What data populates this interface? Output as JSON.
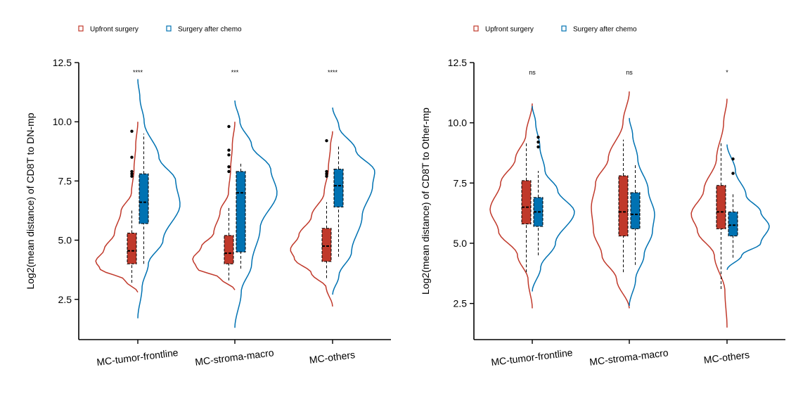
{
  "colors": {
    "upfront": "#c0392b",
    "chemo": "#0072b2",
    "axis": "#000000"
  },
  "chart_data": [
    {
      "type": "violin",
      "ylabel": "Log2(mean distance) of CD8T to DN-mp",
      "xlabel": "",
      "ylim": [
        0.8,
        12.5
      ],
      "yticks": [
        "2.5",
        "5.0",
        "7.5",
        "10.0",
        "12.5"
      ],
      "legend": {
        "placement": "top-left",
        "entries": [
          "Upfront surgery",
          "Surgery after chemo"
        ]
      },
      "categories": [
        "MC-tumor-frontline",
        "MC-stroma-macro",
        "MC-others"
      ],
      "significance": [
        "****",
        "***",
        "****"
      ],
      "series": [
        {
          "name": "Upfront surgery",
          "groups": [
            {
              "q1": 4.0,
              "median": 4.55,
              "q3": 5.3,
              "whislo": 3.2,
              "whishi": 6.3,
              "outliers": [
                7.7,
                7.8,
                7.9,
                8.5,
                9.6
              ],
              "violin": {
                "min": 2.8,
                "max": 10.0,
                "width": [
                  [
                    2.8,
                    0.0
                  ],
                  [
                    3.3,
                    0.3
                  ],
                  [
                    3.8,
                    0.9
                  ],
                  [
                    4.1,
                    1.0
                  ],
                  [
                    4.6,
                    0.8
                  ],
                  [
                    5.3,
                    0.55
                  ],
                  [
                    6.2,
                    0.4
                  ],
                  [
                    7.0,
                    0.15
                  ],
                  [
                    8.0,
                    0.09
                  ],
                  [
                    9.0,
                    0.05
                  ],
                  [
                    10.0,
                    0.0
                  ]
                ]
              }
            },
            {
              "q1": 4.0,
              "median": 4.45,
              "q3": 5.2,
              "whislo": 3.3,
              "whishi": 6.4,
              "outliers": [
                7.9,
                8.1,
                8.6,
                8.8,
                9.8
              ],
              "violin": {
                "min": 2.9,
                "max": 10.0,
                "width": [
                  [
                    2.9,
                    0.0
                  ],
                  [
                    3.4,
                    0.35
                  ],
                  [
                    3.8,
                    0.9
                  ],
                  [
                    4.2,
                    1.0
                  ],
                  [
                    4.7,
                    0.8
                  ],
                  [
                    5.3,
                    0.5
                  ],
                  [
                    6.2,
                    0.35
                  ],
                  [
                    7.0,
                    0.15
                  ],
                  [
                    8.0,
                    0.1
                  ],
                  [
                    9.0,
                    0.06
                  ],
                  [
                    10.0,
                    0.0
                  ]
                ]
              }
            },
            {
              "q1": 4.1,
              "median": 4.75,
              "q3": 5.5,
              "whislo": 3.4,
              "whishi": 6.6,
              "outliers": [
                7.7,
                7.8,
                7.9,
                9.2
              ],
              "violin": {
                "min": 2.2,
                "max": 9.6,
                "width": [
                  [
                    2.2,
                    0.0
                  ],
                  [
                    3.0,
                    0.15
                  ],
                  [
                    3.6,
                    0.5
                  ],
                  [
                    4.2,
                    0.9
                  ],
                  [
                    4.6,
                    1.0
                  ],
                  [
                    5.2,
                    0.8
                  ],
                  [
                    6.0,
                    0.5
                  ],
                  [
                    7.0,
                    0.2
                  ],
                  [
                    8.0,
                    0.1
                  ],
                  [
                    9.0,
                    0.05
                  ],
                  [
                    9.6,
                    0.0
                  ]
                ]
              }
            }
          ]
        },
        {
          "name": "Surgery after chemo",
          "groups": [
            {
              "q1": 5.7,
              "median": 6.6,
              "q3": 7.8,
              "whislo": 4.0,
              "whishi": 9.5,
              "outliers": [],
              "violin": {
                "min": 1.7,
                "max": 11.8,
                "width": [
                  [
                    1.7,
                    0.0
                  ],
                  [
                    3.0,
                    0.1
                  ],
                  [
                    4.0,
                    0.25
                  ],
                  [
                    5.0,
                    0.6
                  ],
                  [
                    6.5,
                    1.0
                  ],
                  [
                    7.5,
                    0.9
                  ],
                  [
                    8.5,
                    0.5
                  ],
                  [
                    10.0,
                    0.15
                  ],
                  [
                    11.0,
                    0.05
                  ],
                  [
                    11.8,
                    0.0
                  ]
                ]
              }
            },
            {
              "q1": 4.5,
              "median": 7.0,
              "q3": 7.9,
              "whislo": 3.8,
              "whishi": 8.3,
              "outliers": [],
              "violin": {
                "min": 1.3,
                "max": 10.9,
                "width": [
                  [
                    1.3,
                    0.0
                  ],
                  [
                    2.8,
                    0.15
                  ],
                  [
                    4.0,
                    0.4
                  ],
                  [
                    5.5,
                    0.6
                  ],
                  [
                    7.0,
                    1.0
                  ],
                  [
                    8.0,
                    0.85
                  ],
                  [
                    9.0,
                    0.4
                  ],
                  [
                    10.0,
                    0.12
                  ],
                  [
                    10.9,
                    0.0
                  ]
                ]
              }
            },
            {
              "q1": 6.4,
              "median": 7.3,
              "q3": 8.0,
              "whislo": 4.3,
              "whishi": 9.0,
              "outliers": [],
              "violin": {
                "min": 2.7,
                "max": 10.6,
                "width": [
                  [
                    2.7,
                    0.0
                  ],
                  [
                    3.5,
                    0.15
                  ],
                  [
                    4.5,
                    0.45
                  ],
                  [
                    6.0,
                    0.7
                  ],
                  [
                    7.3,
                    0.95
                  ],
                  [
                    7.9,
                    1.0
                  ],
                  [
                    8.8,
                    0.55
                  ],
                  [
                    9.8,
                    0.15
                  ],
                  [
                    10.6,
                    0.0
                  ]
                ]
              }
            }
          ]
        }
      ]
    },
    {
      "type": "violin",
      "ylabel": "Log2(mean distance) of CD8T to Other-mp",
      "xlabel": "",
      "ylim": [
        1.0,
        12.5
      ],
      "yticks": [
        "2.5",
        "5.0",
        "7.5",
        "10.0",
        "12.5"
      ],
      "legend": {
        "placement": "top-left",
        "entries": [
          "Upfront surgery",
          "Surgery after chemo"
        ]
      },
      "categories": [
        "MC-tumor-frontline",
        "MC-stroma-macro",
        "MC-others"
      ],
      "significance": [
        "ns",
        "ns",
        "*"
      ],
      "series": [
        {
          "name": "Upfront surgery",
          "groups": [
            {
              "q1": 5.8,
              "median": 6.5,
              "q3": 7.6,
              "whislo": 3.8,
              "whishi": 9.2,
              "outliers": [],
              "violin": {
                "min": 2.3,
                "max": 10.8,
                "width": [
                  [
                    2.3,
                    0.0
                  ],
                  [
                    3.5,
                    0.1
                  ],
                  [
                    4.5,
                    0.35
                  ],
                  [
                    5.5,
                    0.8
                  ],
                  [
                    6.4,
                    1.0
                  ],
                  [
                    7.5,
                    0.75
                  ],
                  [
                    8.5,
                    0.4
                  ],
                  [
                    9.5,
                    0.15
                  ],
                  [
                    10.8,
                    0.0
                  ]
                ]
              }
            },
            {
              "q1": 5.3,
              "median": 6.3,
              "q3": 7.8,
              "whislo": 3.8,
              "whishi": 9.3,
              "outliers": [],
              "violin": {
                "min": 2.3,
                "max": 11.3,
                "width": [
                  [
                    2.3,
                    0.0
                  ],
                  [
                    3.5,
                    0.3
                  ],
                  [
                    4.5,
                    0.65
                  ],
                  [
                    5.5,
                    0.85
                  ],
                  [
                    6.5,
                    0.9
                  ],
                  [
                    7.5,
                    0.8
                  ],
                  [
                    8.5,
                    0.5
                  ],
                  [
                    10.0,
                    0.15
                  ],
                  [
                    11.3,
                    0.0
                  ]
                ]
              }
            },
            {
              "q1": 5.6,
              "median": 6.3,
              "q3": 7.4,
              "whislo": 3.1,
              "whishi": 9.2,
              "outliers": [],
              "violin": {
                "min": 1.5,
                "max": 11.0,
                "width": [
                  [
                    1.5,
                    0.0
                  ],
                  [
                    3.0,
                    0.05
                  ],
                  [
                    4.5,
                    0.3
                  ],
                  [
                    5.5,
                    0.7
                  ],
                  [
                    6.2,
                    0.85
                  ],
                  [
                    7.2,
                    0.55
                  ],
                  [
                    8.5,
                    0.25
                  ],
                  [
                    10.0,
                    0.08
                  ],
                  [
                    11.0,
                    0.0
                  ]
                ]
              }
            }
          ]
        },
        {
          "name": "Surgery after chemo",
          "groups": [
            {
              "q1": 5.7,
              "median": 6.3,
              "q3": 6.9,
              "whislo": 4.5,
              "whishi": 8.0,
              "outliers": [
                9.0,
                9.2,
                9.4
              ],
              "violin": {
                "min": 3.0,
                "max": 10.7,
                "width": [
                  [
                    3.0,
                    0.0
                  ],
                  [
                    4.0,
                    0.2
                  ],
                  [
                    5.0,
                    0.55
                  ],
                  [
                    6.3,
                    1.0
                  ],
                  [
                    7.2,
                    0.6
                  ],
                  [
                    8.0,
                    0.3
                  ],
                  [
                    9.0,
                    0.18
                  ],
                  [
                    10.0,
                    0.08
                  ],
                  [
                    10.7,
                    0.0
                  ]
                ]
              }
            },
            {
              "q1": 5.6,
              "median": 6.2,
              "q3": 7.1,
              "whislo": 4.1,
              "whishi": 8.3,
              "outliers": [],
              "violin": {
                "min": 2.4,
                "max": 10.2,
                "width": [
                  [
                    2.4,
                    0.0
                  ],
                  [
                    3.5,
                    0.15
                  ],
                  [
                    4.5,
                    0.35
                  ],
                  [
                    5.5,
                    0.55
                  ],
                  [
                    6.2,
                    0.6
                  ],
                  [
                    7.2,
                    0.45
                  ],
                  [
                    8.5,
                    0.2
                  ],
                  [
                    9.5,
                    0.08
                  ],
                  [
                    10.2,
                    0.0
                  ]
                ]
              }
            },
            {
              "q1": 5.3,
              "median": 5.75,
              "q3": 6.3,
              "whislo": 4.4,
              "whishi": 7.1,
              "outliers": [
                7.9,
                8.5
              ],
              "violin": {
                "min": 3.9,
                "max": 9.1,
                "width": [
                  [
                    3.9,
                    0.0
                  ],
                  [
                    4.5,
                    0.35
                  ],
                  [
                    5.0,
                    0.8
                  ],
                  [
                    5.7,
                    1.0
                  ],
                  [
                    6.3,
                    0.8
                  ],
                  [
                    7.0,
                    0.45
                  ],
                  [
                    8.0,
                    0.2
                  ],
                  [
                    9.1,
                    0.0
                  ]
                ]
              }
            }
          ]
        }
      ]
    }
  ]
}
